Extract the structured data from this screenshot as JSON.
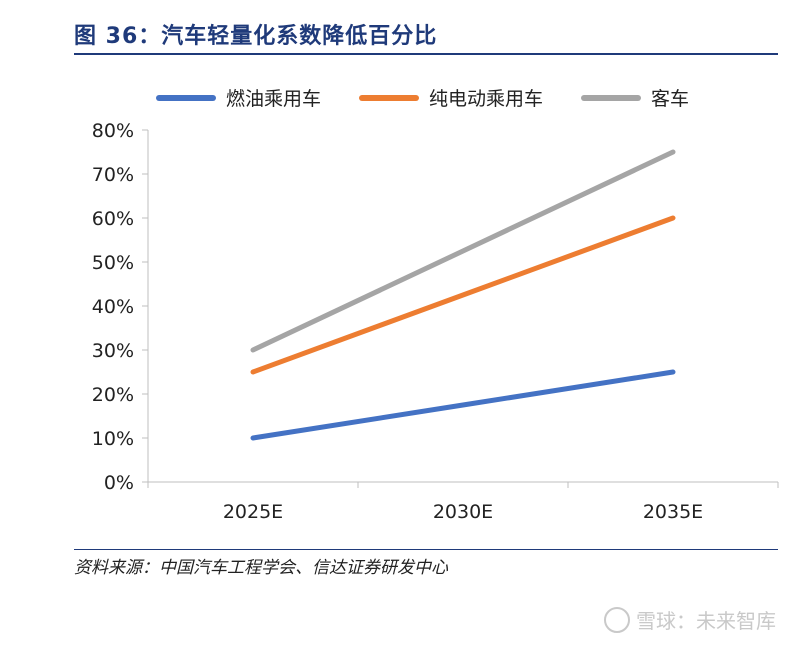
{
  "header": {
    "title": "图 36：汽车轻量化系数降低百分比"
  },
  "footer": {
    "source": "资料来源：中国汽车工程学会、信达证券研发中心",
    "watermark": "雪球：未来智库"
  },
  "chart_data": {
    "type": "line",
    "categories": [
      "2025E",
      "2030E",
      "2035E"
    ],
    "series": [
      {
        "name": "燃油乘用车",
        "values": [
          10,
          17.5,
          25
        ],
        "color": "#4472c4"
      },
      {
        "name": "纯电动乘用车",
        "values": [
          25,
          42.5,
          60
        ],
        "color": "#ed7d31"
      },
      {
        "name": "客车",
        "values": [
          30,
          52.5,
          75
        ],
        "color": "#a5a5a5"
      }
    ],
    "y_ticks": [
      "0%",
      "10%",
      "20%",
      "30%",
      "40%",
      "50%",
      "60%",
      "70%",
      "80%"
    ],
    "ylim": [
      0,
      80
    ],
    "title": "图 36：汽车轻量化系数降低百分比",
    "xlabel": "",
    "ylabel": "",
    "legend_position": "top",
    "grid": false
  }
}
